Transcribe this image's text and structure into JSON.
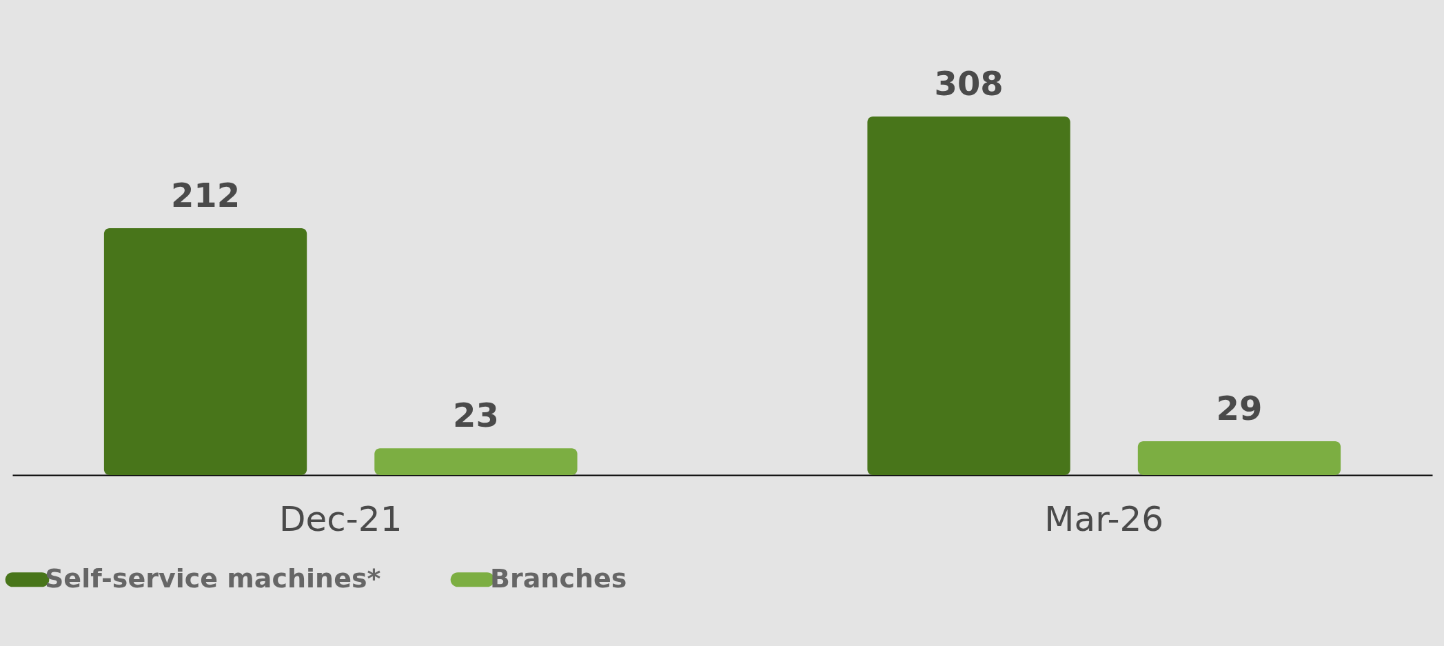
{
  "chart_data": {
    "type": "bar",
    "categories": [
      "Dec-21",
      "Mar-26"
    ],
    "series": [
      {
        "name": "Self-service machines*",
        "color": "#48751a",
        "values": [
          212,
          308
        ]
      },
      {
        "name": "Branches",
        "color": "#7cae42",
        "values": [
          23,
          29
        ]
      }
    ],
    "data_labels": true,
    "legend": "bottom left",
    "grid": false,
    "tick_labels": "x"
  }
}
